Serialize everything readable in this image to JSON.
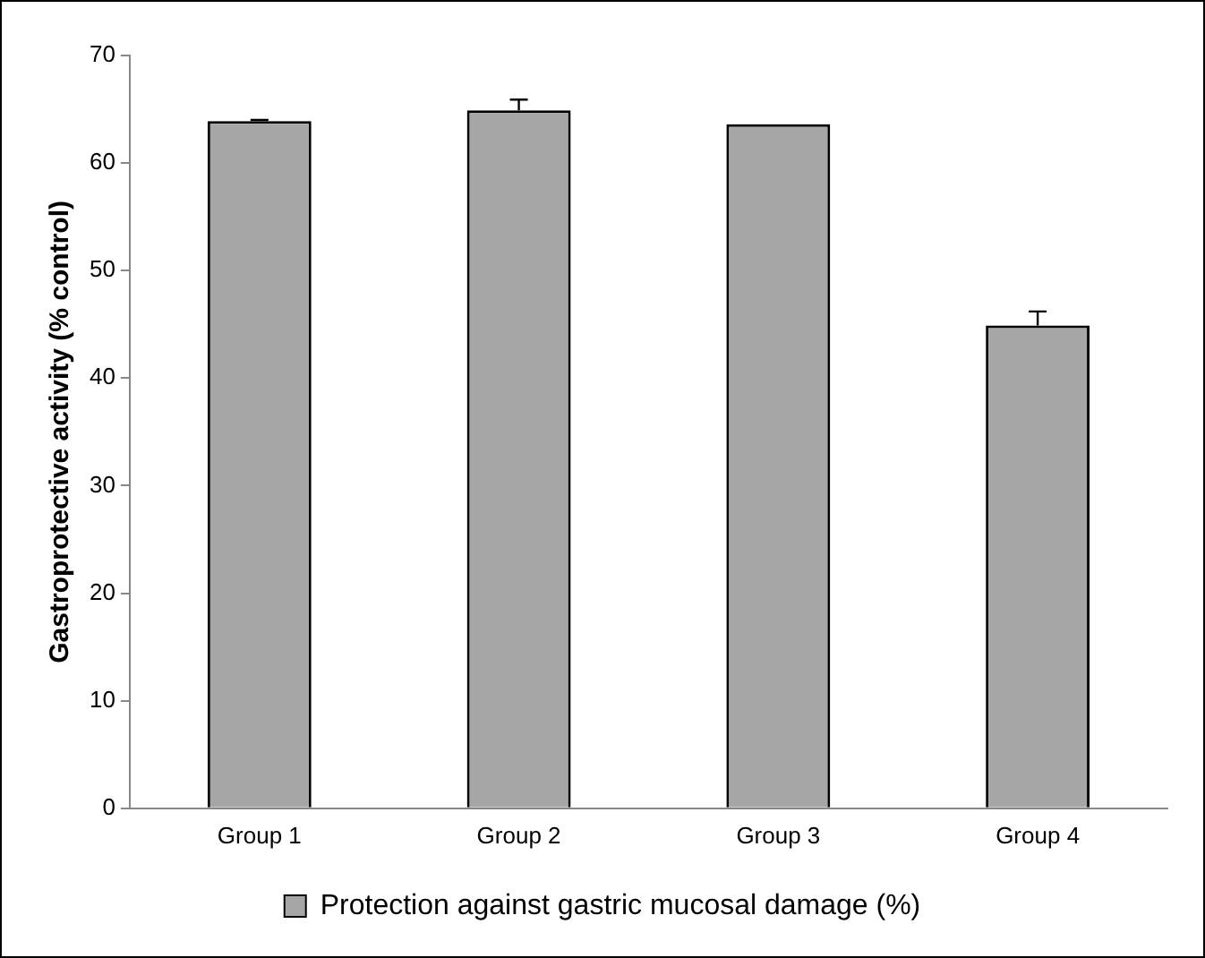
{
  "chart_data": {
    "type": "bar",
    "ylabel": "Gastroprotective activity (% control)",
    "categories": [
      "Group 1",
      "Group 2",
      "Group 3",
      "Group 4"
    ],
    "series": [
      {
        "name": "Protection against gastric mucosal damage (%)",
        "color": "#a6a6a6",
        "values": [
          63.9,
          64.9,
          63.6,
          44.9
        ],
        "errors": [
          [
            63.9,
            64.0
          ],
          [
            64.9,
            65.9
          ],
          null,
          [
            44.9,
            46.2
          ]
        ]
      }
    ],
    "ylim": [
      0,
      70
    ],
    "yticks": [
      0,
      10,
      20,
      30,
      40,
      50,
      60,
      70
    ],
    "grid": false,
    "legend": "bottom"
  }
}
